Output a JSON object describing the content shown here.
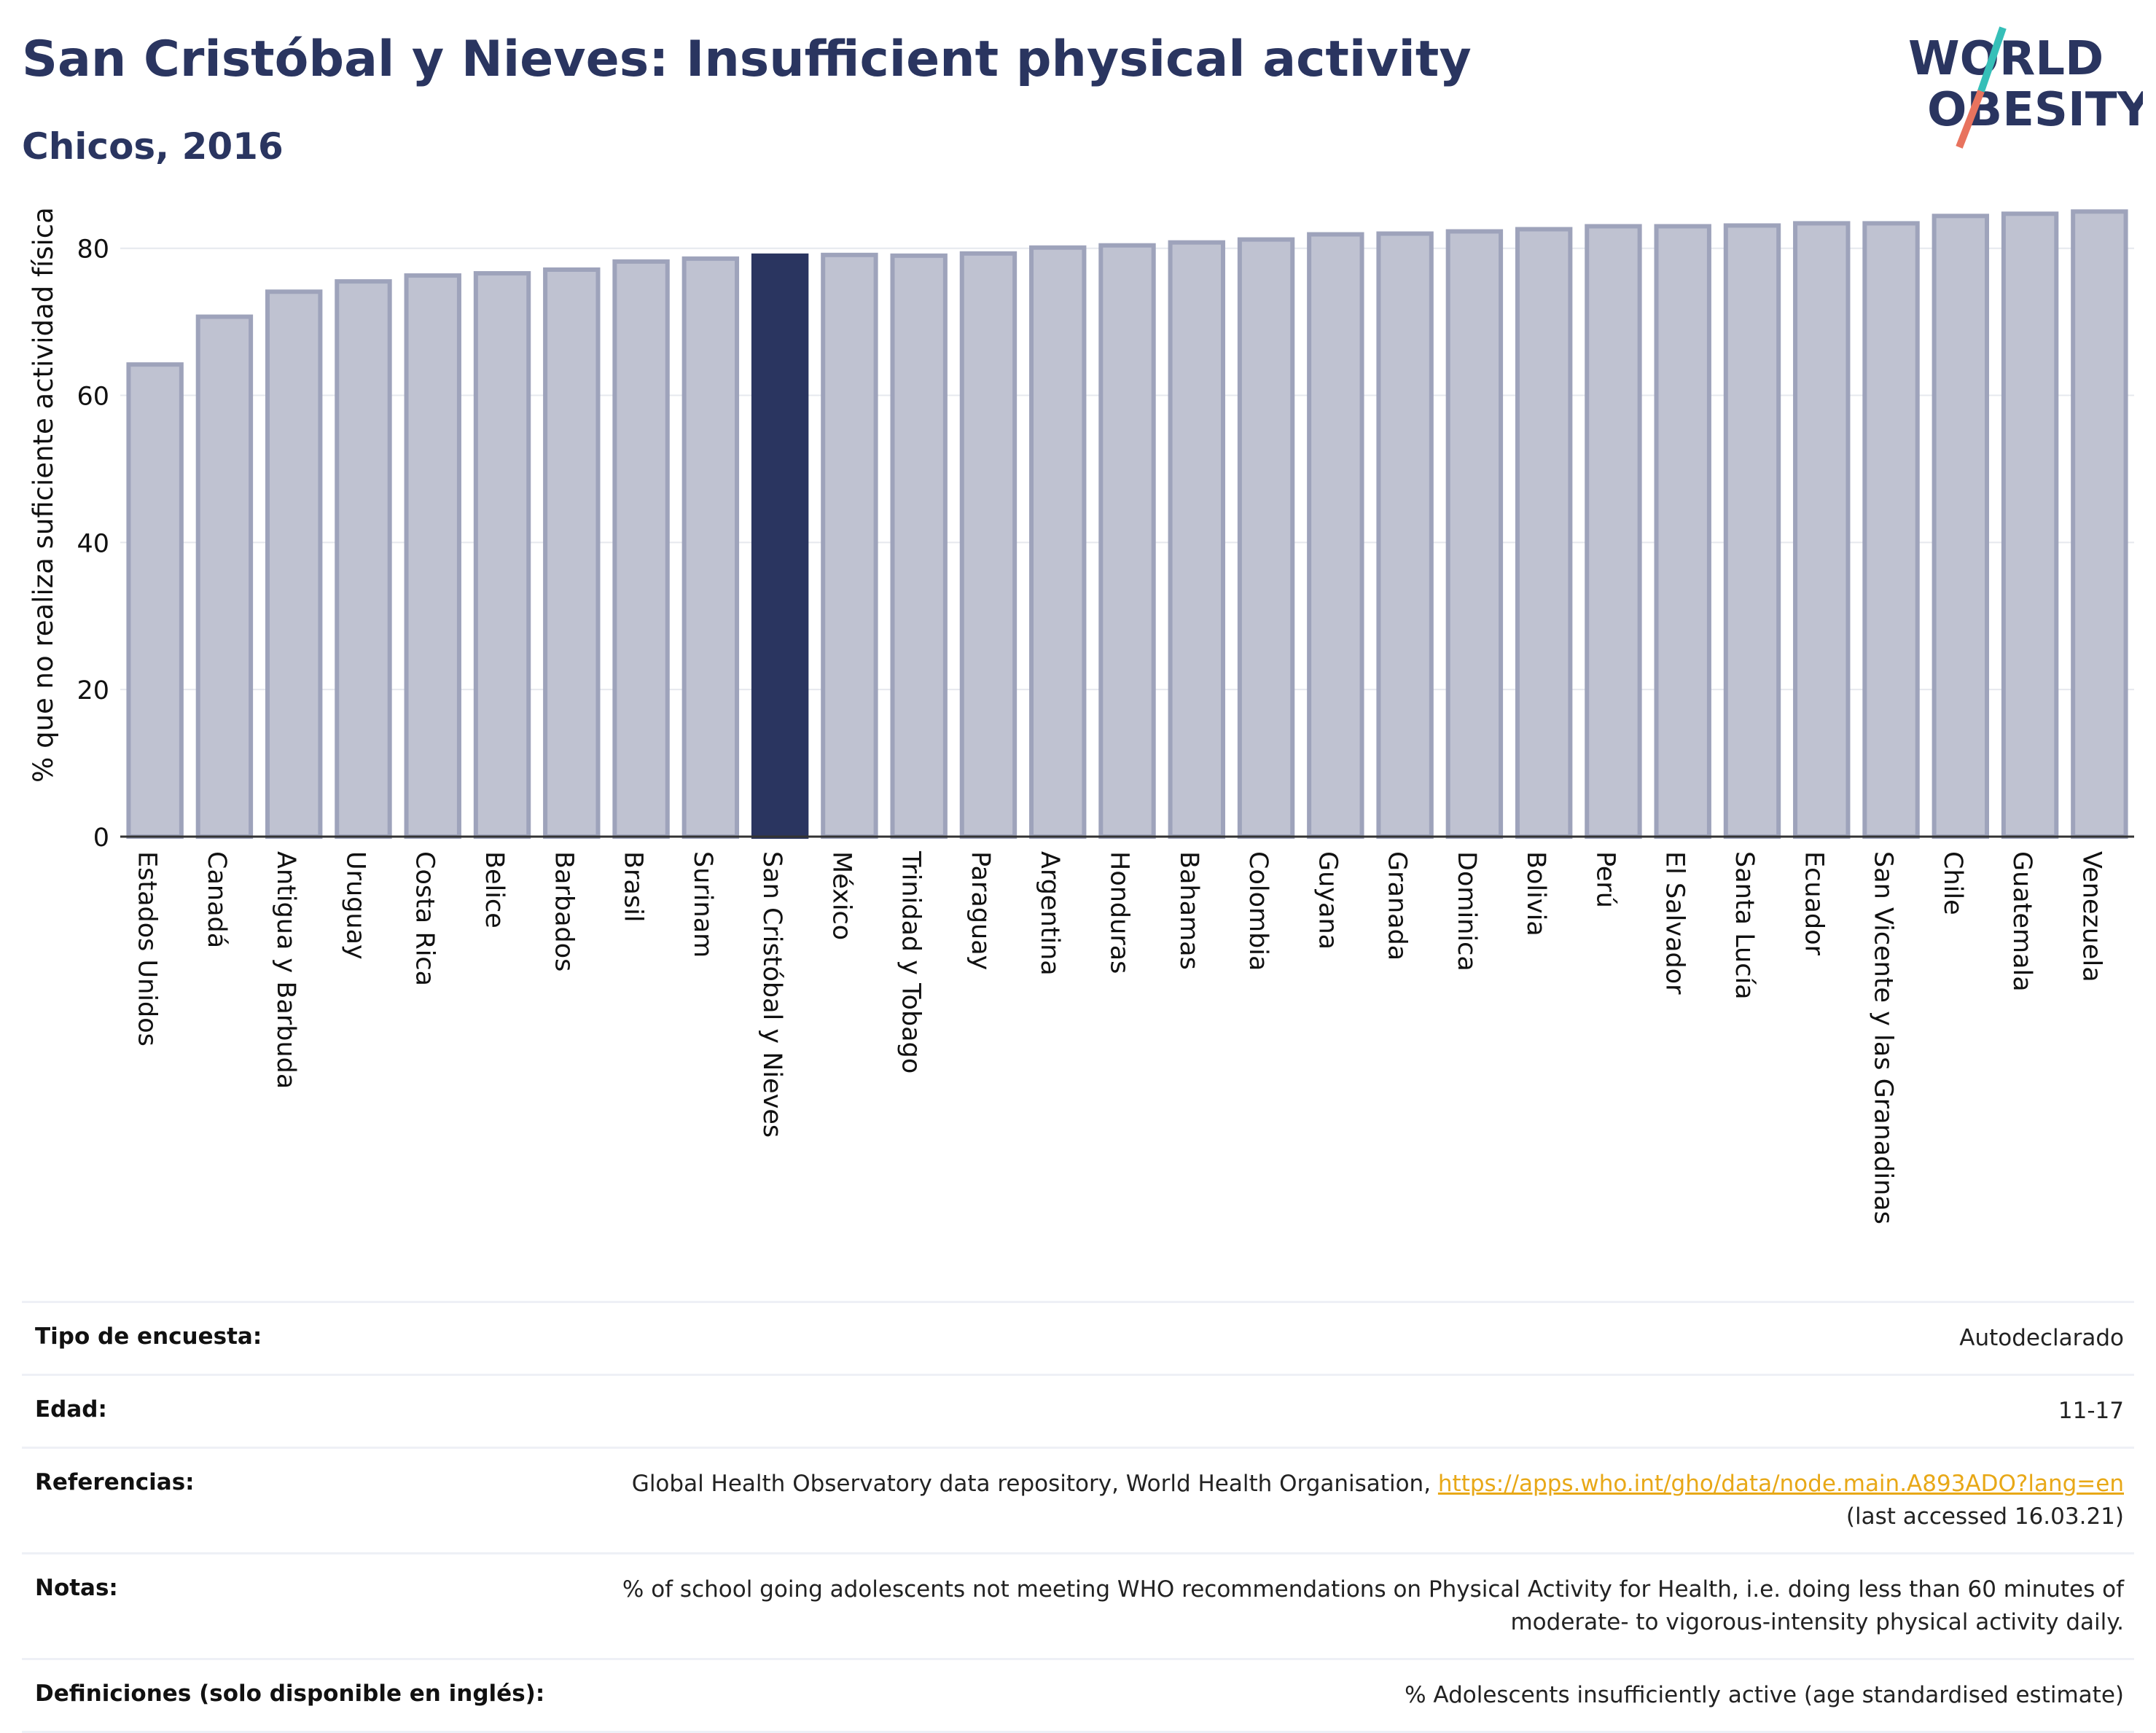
{
  "header": {
    "title": "San Cristóbal y Nieves: Insufficient physical activity",
    "subtitle": "Chicos, 2016"
  },
  "logo": {
    "line1": "WORLD",
    "line2": "OBESITY"
  },
  "colors": {
    "highlight": "#2a3560",
    "bar_fill": "#bfc2d1",
    "bar_stroke": "#9ea3bb",
    "title": "#2a3560",
    "link": "#e8a817"
  },
  "chart_data": {
    "type": "bar",
    "ylabel": "% que no realiza suficiente actividad física",
    "ylim": [
      0,
      88
    ],
    "yticks": [
      0,
      20,
      40,
      60,
      80
    ],
    "grid": true,
    "highlight": "San Cristóbal y Nieves",
    "categories": [
      "Estados Unidos",
      "Canadá",
      "Antigua y Barbuda",
      "Uruguay",
      "Costa Rica",
      "Belice",
      "Barbados",
      "Brasil",
      "Surinam",
      "San Cristóbal y Nieves",
      "México",
      "Trinidad y Tobago",
      "Paraguay",
      "Argentina",
      "Honduras",
      "Bahamas",
      "Colombia",
      "Guyana",
      "Granada",
      "Dominica",
      "Bolivia",
      "Perú",
      "El Salvador",
      "Santa Lucía",
      "Ecuador",
      "San Vicente y las Granadinas",
      "Chile",
      "Guatemala",
      "Venezuela"
    ],
    "values": [
      64.2,
      70.7,
      74.1,
      75.5,
      76.3,
      76.6,
      77.1,
      78.2,
      78.6,
      79.0,
      79.1,
      79.0,
      79.3,
      80.1,
      80.4,
      80.8,
      81.2,
      81.9,
      82.0,
      82.3,
      82.6,
      83.0,
      83.0,
      83.1,
      83.4,
      83.4,
      84.4,
      84.7,
      85.0
    ]
  },
  "meta": {
    "rows": [
      {
        "label": "Tipo de encuesta:",
        "value": "Autodeclarado"
      },
      {
        "label": "Edad:",
        "value": "11-17"
      },
      {
        "label": "Referencias:",
        "value": "Global Health Observatory data repository, World Health Organisation, ",
        "link": "https://apps.who.int/gho/data/node.main.A893ADO?lang=en",
        "value2": "(last accessed 16.03.21)"
      },
      {
        "label": "Notas:",
        "value": "% of school going adolescents not meeting WHO recommendations on Physical Activity for Health, i.e. doing less than 60 minutes of",
        "value2": "moderate- to vigorous-intensity physical activity daily."
      },
      {
        "label": "Definiciones (solo disponible en inglés):",
        "value": "% Adolescents insufficiently active (age standardised estimate)"
      }
    ]
  }
}
